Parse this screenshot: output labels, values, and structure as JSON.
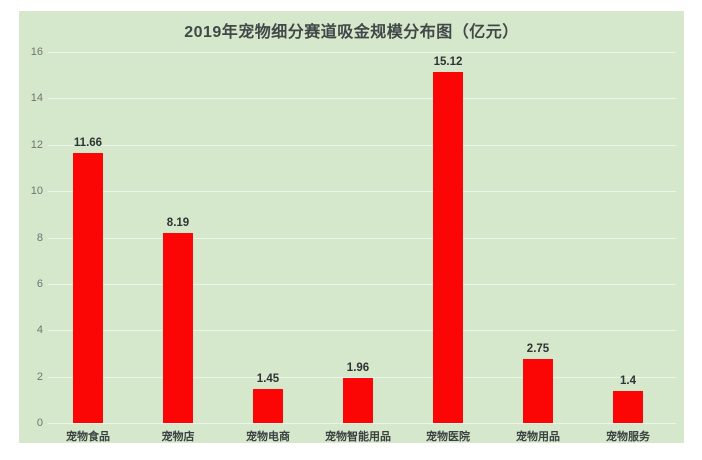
{
  "page": {
    "background": "#ffffff"
  },
  "chart_data": {
    "type": "bar",
    "title": "2019年宠物细分赛道吸金规模分布图（亿元）",
    "categories": [
      "宠物食品",
      "宠物店",
      "宠物电商",
      "宠物智能用品",
      "宠物医院",
      "宠物用品",
      "宠物服务"
    ],
    "values": [
      11.66,
      8.19,
      1.45,
      1.96,
      15.12,
      2.75,
      1.4
    ],
    "value_labels": [
      "11.66",
      "8.19",
      "1.45",
      "1.96",
      "15.12",
      "2.75",
      "1.4"
    ],
    "xlabel": "",
    "ylabel": "",
    "ylim": [
      0,
      16
    ],
    "ytick_step": 2,
    "yticks": [
      0,
      2,
      4,
      6,
      8,
      10,
      12,
      14,
      16
    ],
    "grid": true,
    "legend": "none",
    "colors": {
      "panel_bg": "#d6e8cc",
      "page_bg": "#ffffff",
      "bar": "#fb0605",
      "title_text": "#414848",
      "value_text": "#2e3333",
      "category_text": "#3c4242",
      "tick_text": "#6f746f",
      "gridline": "rgba(255,255,255,0.55)"
    }
  }
}
